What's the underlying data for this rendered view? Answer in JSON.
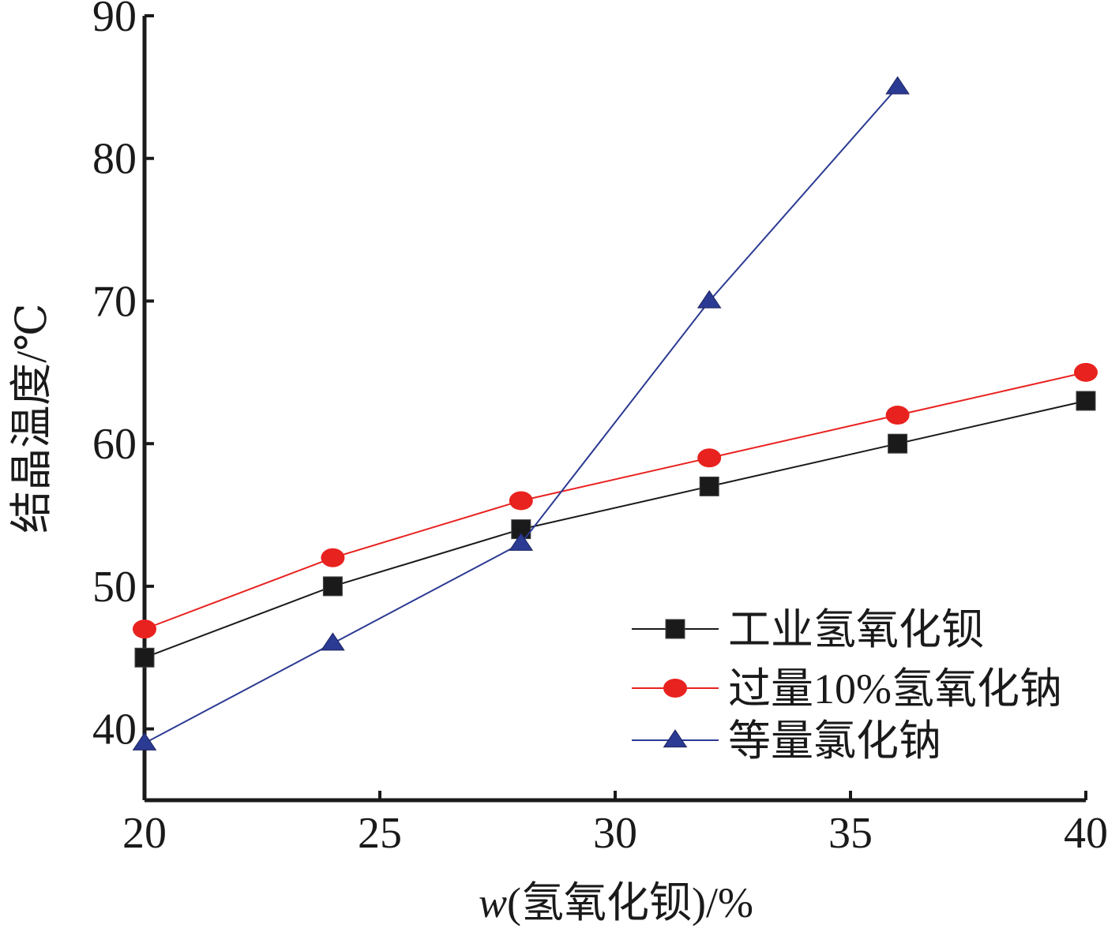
{
  "chart_data": {
    "type": "line",
    "xlabel_italic": "w",
    "xlabel_rest": "(氢氧化钡)/%",
    "ylabel": "结晶温度/℃",
    "xlim": [
      20,
      40
    ],
    "ylim": [
      35,
      90
    ],
    "xticks": [
      20,
      25,
      30,
      35,
      40
    ],
    "yticks": [
      40,
      50,
      60,
      70,
      80,
      90
    ],
    "legend_position": "bottom-right",
    "series": [
      {
        "name": "工业氢氧化钡",
        "color": "#1a1a1a",
        "marker": "square",
        "x": [
          20,
          24,
          28,
          32,
          36,
          40
        ],
        "y": [
          45,
          50,
          54,
          57,
          60,
          63
        ]
      },
      {
        "name": "过量10%氢氧化钠",
        "color": "#e8221f",
        "marker": "circle",
        "x": [
          20,
          24,
          28,
          32,
          36,
          40
        ],
        "y": [
          47,
          52,
          56,
          59,
          62,
          65
        ]
      },
      {
        "name": "等量氯化钠",
        "color": "#2b3a92",
        "marker": "triangle",
        "x": [
          20,
          24,
          28,
          32,
          36
        ],
        "y": [
          39,
          46,
          53,
          70,
          85
        ]
      }
    ]
  }
}
